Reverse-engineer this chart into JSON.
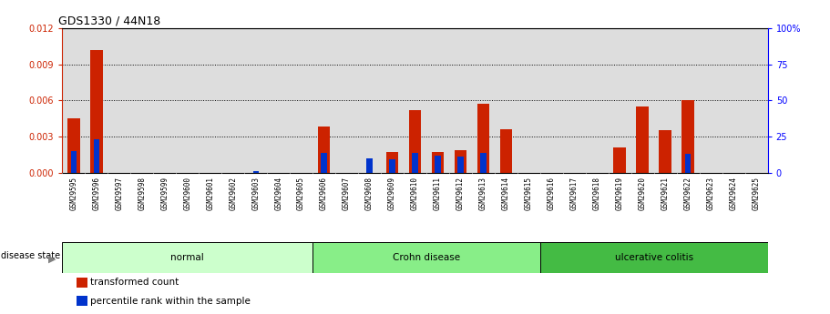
{
  "title": "GDS1330 / 44N18",
  "samples": [
    "GSM29595",
    "GSM29596",
    "GSM29597",
    "GSM29598",
    "GSM29599",
    "GSM29600",
    "GSM29601",
    "GSM29602",
    "GSM29603",
    "GSM29604",
    "GSM29605",
    "GSM29606",
    "GSM29607",
    "GSM29608",
    "GSM29609",
    "GSM29610",
    "GSM29611",
    "GSM29612",
    "GSM29613",
    "GSM29614",
    "GSM29615",
    "GSM29616",
    "GSM29617",
    "GSM29618",
    "GSM29619",
    "GSM29620",
    "GSM29621",
    "GSM29622",
    "GSM29623",
    "GSM29624",
    "GSM29625"
  ],
  "transformed_count": [
    0.0045,
    0.0102,
    0.0,
    0.0,
    0.0,
    0.0,
    0.0,
    0.0,
    0.0,
    0.0,
    0.0,
    0.0038,
    0.0,
    0.0,
    0.0017,
    0.0052,
    0.0017,
    0.0019,
    0.0057,
    0.0036,
    0.0,
    0.0,
    0.0,
    0.0,
    0.0021,
    0.0055,
    0.0035,
    0.006,
    0.0,
    0.0,
    0.0
  ],
  "percentile_rank": [
    15,
    23,
    0,
    0,
    0,
    0,
    0,
    0,
    1,
    0,
    0,
    14,
    0,
    10,
    9,
    14,
    12,
    11,
    14,
    0,
    0,
    0,
    0,
    0,
    0,
    0,
    0,
    13,
    0,
    0,
    0
  ],
  "groups": [
    {
      "label": "normal",
      "start": 0,
      "end": 10,
      "color": "#ccffcc"
    },
    {
      "label": "Crohn disease",
      "start": 11,
      "end": 20,
      "color": "#88ee88"
    },
    {
      "label": "ulcerative colitis",
      "start": 21,
      "end": 30,
      "color": "#44bb44"
    }
  ],
  "ylim_left": [
    0,
    0.012
  ],
  "ylim_right": [
    0,
    100
  ],
  "yticks_left": [
    0,
    0.003,
    0.006,
    0.009,
    0.012
  ],
  "yticks_right": [
    0,
    25,
    50,
    75,
    100
  ],
  "bar_color_red": "#cc2200",
  "bar_color_blue": "#0033cc",
  "bar_width": 0.55,
  "plot_bg": "#dddddd",
  "tick_area_bg": "#aaaaaa"
}
